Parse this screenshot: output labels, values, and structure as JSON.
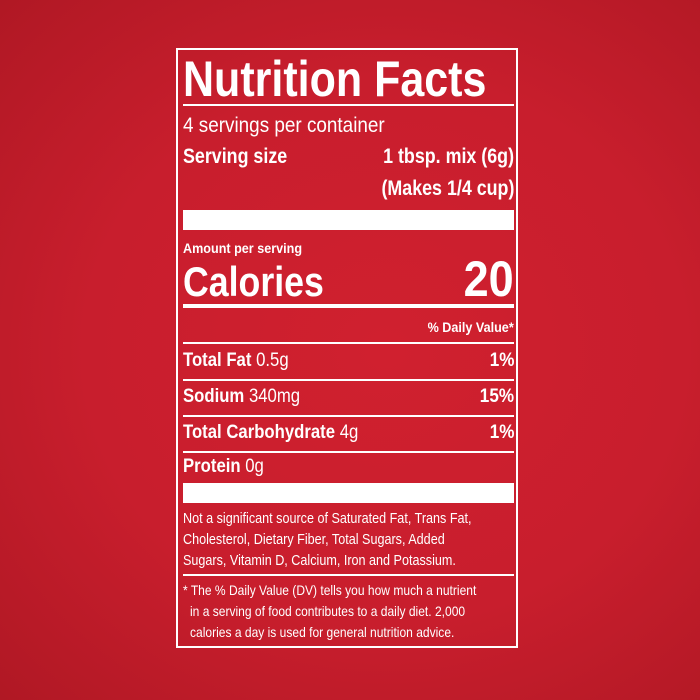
{
  "title": "Nutrition Facts",
  "servings": "4 servings per container",
  "serving_size_label": "Serving size",
  "serving_size_value": "1 tbsp. mix (6g)",
  "serving_size_note": "(Makes 1/4 cup)",
  "amount_per_serving": "Amount per serving",
  "calories_label": "Calories",
  "calories_value": "20",
  "daily_value_header": "% Daily Value*",
  "nutrients": [
    {
      "name": "Total Fat",
      "amount": "0.5g",
      "dv": "1%"
    },
    {
      "name": "Sodium",
      "amount": "340mg",
      "dv": "15%"
    },
    {
      "name": "Total Carbohydrate",
      "amount": "4g",
      "dv": "1%"
    },
    {
      "name": "Protein",
      "amount": "0g",
      "dv": ""
    }
  ],
  "not_significant": [
    "Not a significant source of Saturated Fat, Trans Fat,",
    "Cholesterol, Dietary Fiber, Total Sugars, Added",
    "Sugars, Vitamin D, Calcium, Iron and Potassium."
  ],
  "footnote": [
    "* The % Daily Value (DV) tells you how much a nutrient",
    "in a serving of food contributes to a daily diet. 2,000",
    "calories a day is used for general nutrition advice."
  ],
  "colors": {
    "background": "#c81e2d",
    "ink": "#ffffff"
  }
}
